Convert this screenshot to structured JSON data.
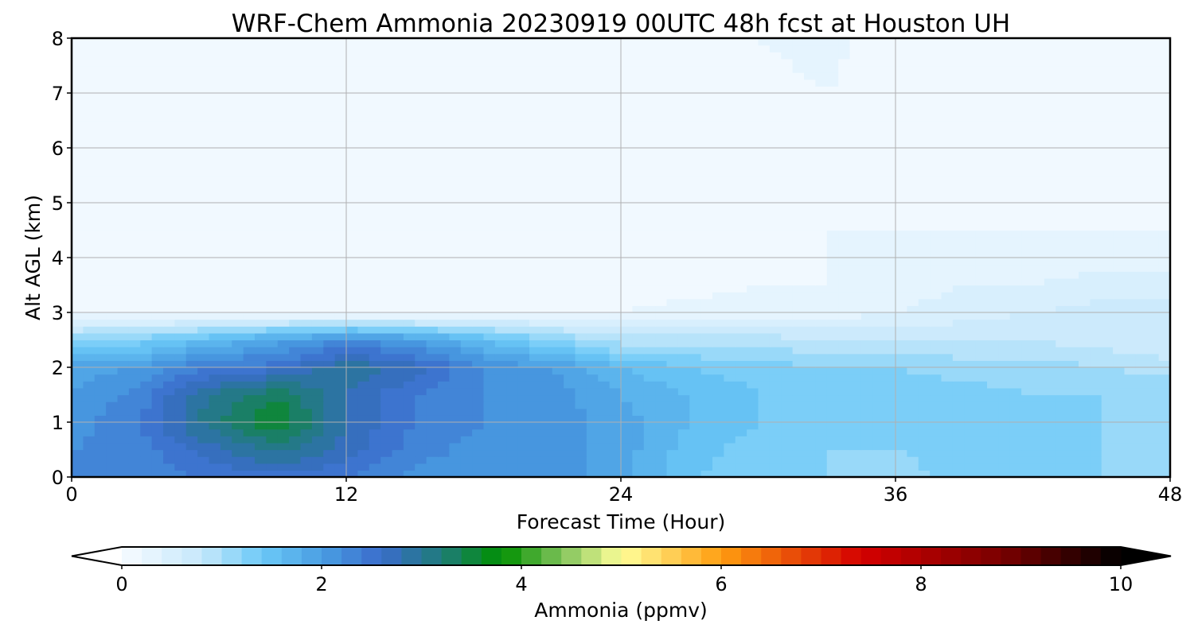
{
  "chart_data": {
    "type": "heatmap",
    "subtype": "filled-contour time-height cross section",
    "title": "WRF-Chem Ammonia  20230919 00UTC 48h fcst at Houston UH",
    "xlabel": "Forecast Time (Hour)",
    "ylabel": "Alt AGL (km)",
    "xlim": [
      0,
      48
    ],
    "ylim": [
      0,
      8
    ],
    "x_ticks": [
      0,
      12,
      24,
      36,
      48
    ],
    "y_ticks": [
      0,
      1,
      2,
      3,
      4,
      5,
      6,
      7,
      8
    ],
    "grid": true,
    "x": [
      0,
      3,
      6,
      9,
      12,
      15,
      18,
      21,
      24,
      27,
      30,
      33,
      36,
      39,
      42,
      45,
      48
    ],
    "y": [
      0,
      0.5,
      1,
      1.5,
      2,
      2.5,
      3,
      3.5,
      4,
      4.5,
      5,
      6,
      7,
      8
    ],
    "z": [
      [
        2.3,
        2.3,
        2.4,
        2.5,
        2.4,
        2.1,
        2.1,
        2.1,
        1.9,
        1.4,
        1.3,
        1.2,
        1.1,
        1.3,
        1.3,
        1.2,
        1.2
      ],
      [
        2.2,
        2.3,
        2.7,
        3.1,
        2.7,
        2.3,
        2.1,
        2.1,
        1.9,
        1.5,
        1.3,
        1.2,
        1.2,
        1.3,
        1.3,
        1.2,
        1.2
      ],
      [
        2.1,
        2.4,
        3.1,
        3.6,
        2.8,
        2.4,
        2.2,
        2.1,
        1.9,
        1.6,
        1.4,
        1.3,
        1.2,
        1.3,
        1.3,
        1.2,
        1.2
      ],
      [
        2.0,
        2.3,
        3.0,
        3.4,
        2.8,
        2.4,
        2.2,
        2.1,
        1.8,
        1.6,
        1.4,
        1.3,
        1.3,
        1.3,
        1.2,
        1.2,
        1.2
      ],
      [
        1.9,
        2.0,
        2.4,
        2.5,
        3.0,
        2.7,
        2.2,
        2.0,
        1.6,
        1.4,
        1.3,
        1.2,
        1.2,
        1.1,
        1.1,
        1.0,
        0.9
      ],
      [
        1.2,
        1.3,
        1.6,
        1.9,
        2.2,
        2.0,
        1.6,
        1.2,
        0.9,
        0.9,
        0.9,
        0.8,
        0.8,
        0.8,
        0.8,
        0.7,
        0.6
      ],
      [
        0.1,
        0.1,
        0.1,
        0.1,
        0.1,
        0.1,
        0.1,
        0.2,
        0.2,
        0.3,
        0.3,
        0.3,
        0.4,
        0.5,
        0.6,
        0.7,
        0.7
      ],
      [
        0.1,
        0.1,
        0.1,
        0.1,
        0.1,
        0.1,
        0.1,
        0.1,
        0.1,
        0.1,
        0.2,
        0.2,
        0.3,
        0.4,
        0.4,
        0.5,
        0.5
      ],
      [
        0.1,
        0.1,
        0.1,
        0.1,
        0.1,
        0.1,
        0.1,
        0.1,
        0.1,
        0.1,
        0.1,
        0.2,
        0.25,
        0.3,
        0.3,
        0.3,
        0.3
      ],
      [
        0.1,
        0.1,
        0.1,
        0.1,
        0.1,
        0.1,
        0.1,
        0.1,
        0.1,
        0.1,
        0.1,
        0.2,
        0.2,
        0.2,
        0.2,
        0.2,
        0.2
      ],
      [
        0.1,
        0.1,
        0.1,
        0.1,
        0.1,
        0.1,
        0.1,
        0.1,
        0.1,
        0.1,
        0.1,
        0.1,
        0.1,
        0.1,
        0.1,
        0.1,
        0.1
      ],
      [
        0.1,
        0.1,
        0.1,
        0.1,
        0.1,
        0.1,
        0.1,
        0.1,
        0.1,
        0.1,
        0.1,
        0.1,
        0.1,
        0.1,
        0.1,
        0.1,
        0.1
      ],
      [
        0.1,
        0.1,
        0.1,
        0.1,
        0.1,
        0.1,
        0.1,
        0.1,
        0.1,
        0.1,
        0.15,
        0.2,
        0.1,
        0.1,
        0.1,
        0.1,
        0.1
      ],
      [
        0.1,
        0.1,
        0.1,
        0.1,
        0.1,
        0.1,
        0.1,
        0.1,
        0.1,
        0.1,
        0.2,
        0.25,
        0.1,
        0.1,
        0.1,
        0.1,
        0.1
      ]
    ],
    "colorbar": {
      "label": "Ammonia  (ppmv)",
      "min": 0,
      "max": 10,
      "ticks": [
        0,
        2,
        4,
        6,
        8,
        10
      ],
      "extend": "both",
      "color_stops": [
        {
          "value": 0,
          "color": "#f7fbff"
        },
        {
          "value": 0.8,
          "color": "#c6e8fb"
        },
        {
          "value": 1.4,
          "color": "#6cc9f7"
        },
        {
          "value": 2.0,
          "color": "#4a9ee3"
        },
        {
          "value": 2.6,
          "color": "#3a6ccb"
        },
        {
          "value": 3.2,
          "color": "#1f7c7a"
        },
        {
          "value": 3.8,
          "color": "#009000"
        },
        {
          "value": 4.4,
          "color": "#7fc25a"
        },
        {
          "value": 5.0,
          "color": "#ffff9a"
        },
        {
          "value": 6.0,
          "color": "#ff9d10"
        },
        {
          "value": 7.4,
          "color": "#d40000"
        },
        {
          "value": 8.8,
          "color": "#7a0000"
        },
        {
          "value": 10,
          "color": "#000000"
        }
      ],
      "under_color": "#ffffff",
      "over_color": "#000000"
    }
  }
}
